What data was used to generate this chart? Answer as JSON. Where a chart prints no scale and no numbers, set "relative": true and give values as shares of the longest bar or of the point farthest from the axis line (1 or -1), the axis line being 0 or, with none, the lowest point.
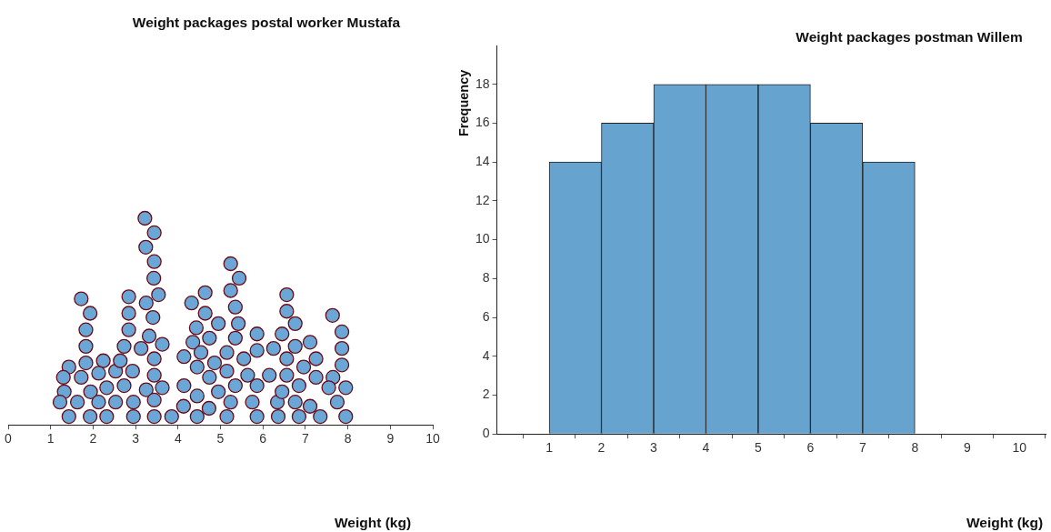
{
  "chart_data": [
    {
      "type": "scatter",
      "title": "Weight packages postal worker Mustafa",
      "xlabel": "Weight (kg)",
      "relative": true,
      "color": "#6aa6d6",
      "marker": "circle",
      "xlim": [
        0,
        10
      ],
      "xticks": [
        0,
        1,
        2,
        3,
        4,
        5,
        6,
        7,
        8,
        9,
        10
      ],
      "tick_labels": "x",
      "x": [
        3.22,
        3.44,
        3.24,
        3.44,
        3.43,
        3.54,
        3.25,
        3.41,
        3.32,
        3.63,
        3.13,
        3.44,
        3.44,
        3.63,
        3.25,
        3.44,
        3.44,
        3.85,
        1.72,
        1.93,
        1.83,
        1.83,
        1.83,
        1.43,
        1.3,
        1.72,
        2.24,
        2.13,
        1.32,
        1.94,
        2.32,
        1.22,
        1.63,
        2.13,
        1.43,
        1.93,
        2.32,
        2.53,
        2.53,
        2.64,
        2.73,
        2.73,
        2.84,
        2.84,
        2.84,
        2.93,
        2.95,
        2.95,
        4.13,
        4.14,
        4.14,
        4.35,
        4.43,
        4.32,
        4.64,
        4.64,
        4.54,
        4.45,
        4.45,
        4.45,
        4.73,
        4.74,
        4.74,
        4.86,
        4.95,
        4.95,
        5.15,
        5.15,
        5.24,
        5.15,
        5.35,
        5.35,
        5.42,
        5.35,
        5.24,
        5.44,
        5.24,
        5.55,
        5.64,
        5.75,
        5.86,
        5.86,
        5.86,
        5.86,
        6.15,
        6.25,
        6.34,
        6.36,
        6.45,
        6.56,
        6.56,
        6.45,
        6.76,
        6.76,
        6.56,
        6.56,
        6.85,
        6.76,
        6.85,
        6.96,
        7.11,
        7.11,
        7.25,
        7.25,
        7.35,
        7.64,
        7.86,
        7.86,
        7.86,
        7.65,
        7.55,
        7.95,
        7.75,
        7.95
      ],
      "values": [
        1,
        0.93,
        0.86,
        0.79,
        0.71,
        0.63,
        0.59,
        0.52,
        0.43,
        0.39,
        0.37,
        0.32,
        0.24,
        0.18,
        0.17,
        0.12,
        0.04,
        0.04,
        0.61,
        0.54,
        0.46,
        0.38,
        0.3,
        0.28,
        0.23,
        0.23,
        0.31,
        0.25,
        0.16,
        0.16,
        0.18,
        0.11,
        0.11,
        0.11,
        0.04,
        0.04,
        0.04,
        0.11,
        0.26,
        0.31,
        0.19,
        0.38,
        0.46,
        0.54,
        0.62,
        0.26,
        0.11,
        0.04,
        0.09,
        0.19,
        0.33,
        0.4,
        0.47,
        0.59,
        0.64,
        0.54,
        0.35,
        0.28,
        0.14,
        0.04,
        0.08,
        0.23,
        0.42,
        0.3,
        0.49,
        0.16,
        0.35,
        0.26,
        0.11,
        0.04,
        0.19,
        0.42,
        0.49,
        0.57,
        0.65,
        0.71,
        0.78,
        0.32,
        0.24,
        0.11,
        0.19,
        0.36,
        0.44,
        0.04,
        0.24,
        0.37,
        0.11,
        0.04,
        0.16,
        0.24,
        0.32,
        0.44,
        0.49,
        0.38,
        0.55,
        0.63,
        0.19,
        0.11,
        0.04,
        0.28,
        0.09,
        0.4,
        0.32,
        0.23,
        0.04,
        0.53,
        0.45,
        0.37,
        0.29,
        0.23,
        0.18,
        0.18,
        0.11,
        0.04
      ]
    },
    {
      "type": "histogram",
      "title": "Weight packages postman Willem",
      "xlabel": "Weight (kg)",
      "ylabel": "Frequency",
      "color": "#66a3cf",
      "bins": [
        1,
        2,
        3,
        4,
        5,
        6,
        7,
        8
      ],
      "values": [
        14,
        16,
        18,
        18,
        18,
        16,
        14
      ],
      "xlim": [
        0,
        10.5
      ],
      "xticks": [
        1,
        2,
        3,
        4,
        5,
        6,
        7,
        8,
        9,
        10
      ],
      "ylim": [
        0,
        20
      ],
      "yticks": [
        0,
        2,
        4,
        6,
        8,
        10,
        12,
        14,
        16,
        18
      ]
    }
  ]
}
